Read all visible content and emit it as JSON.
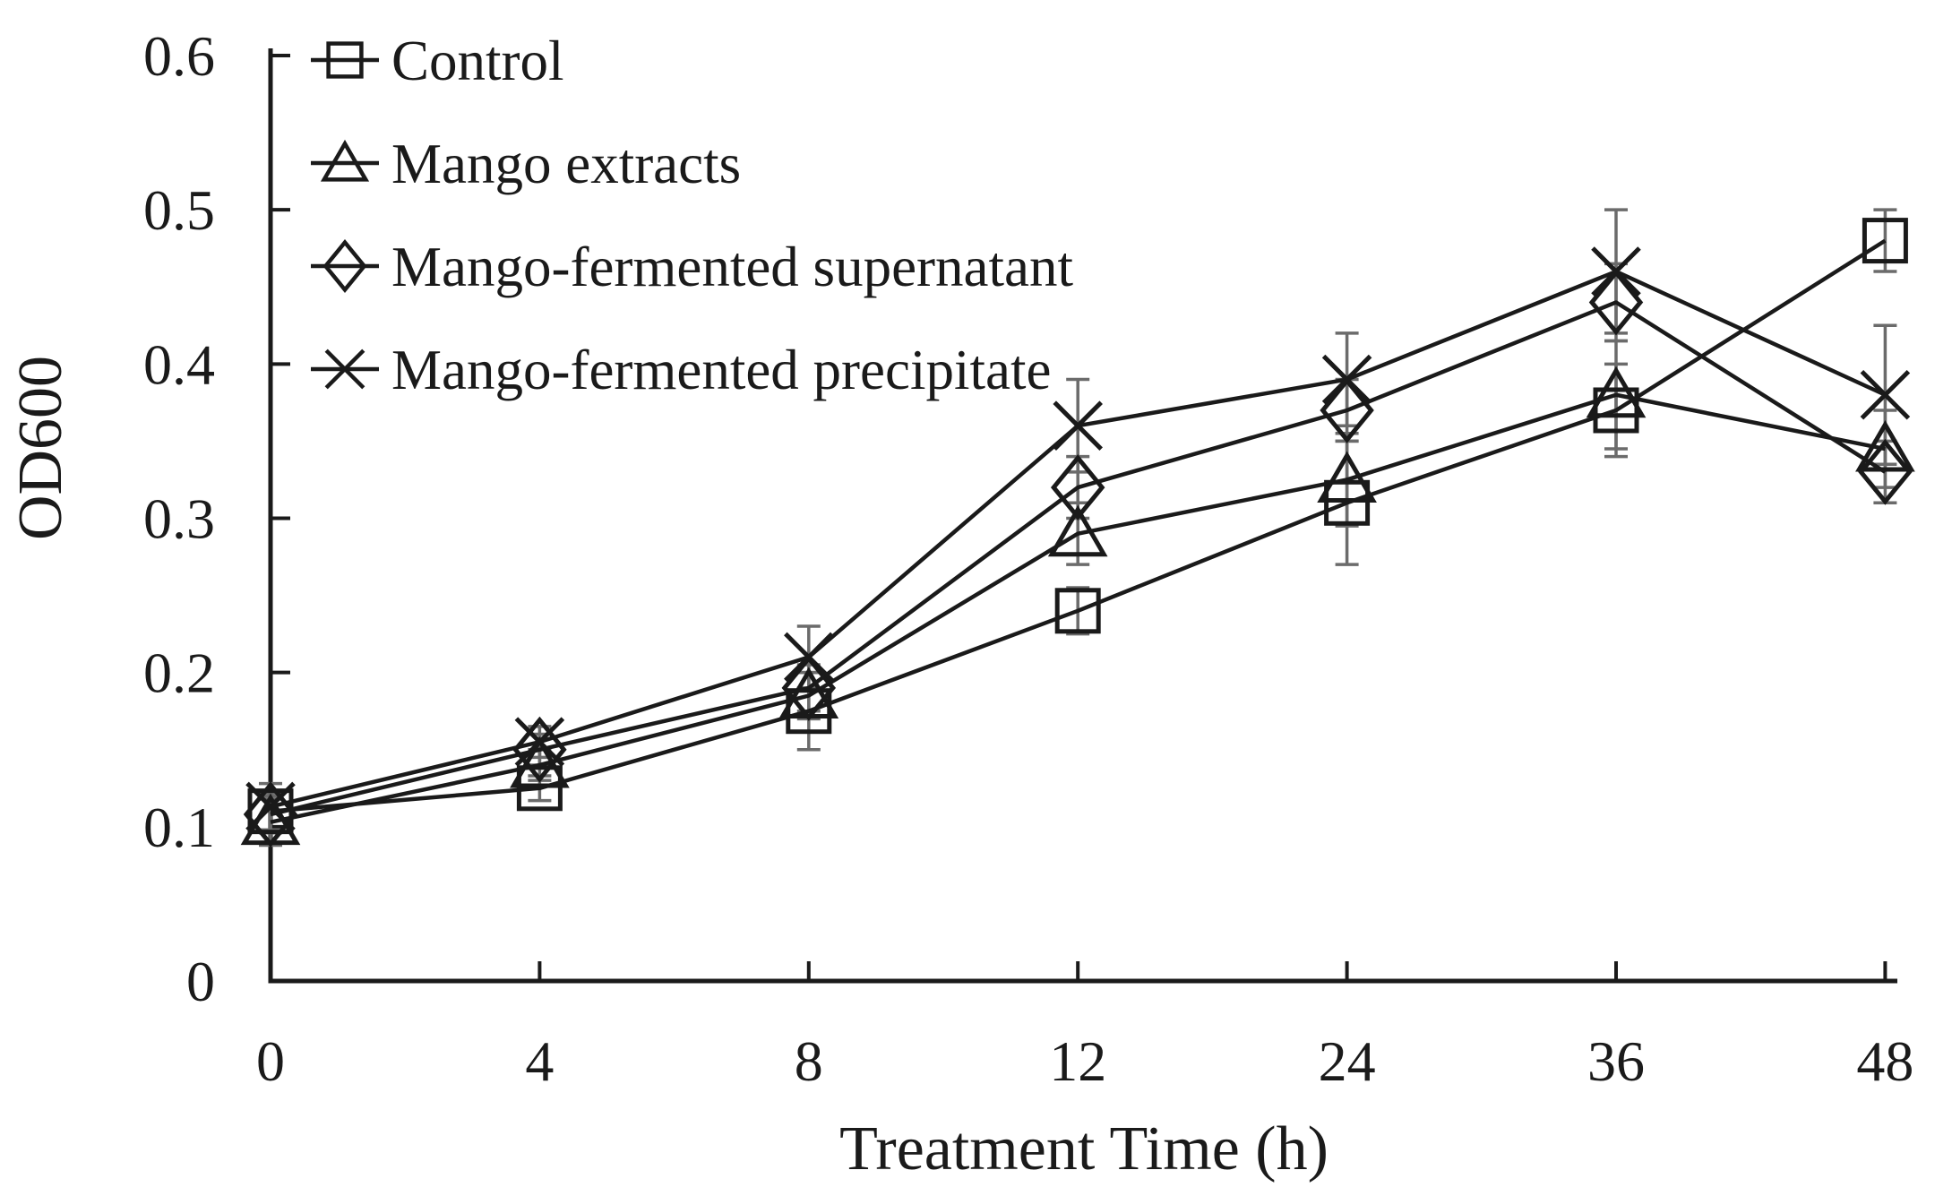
{
  "figure": {
    "background": "#ffffff",
    "ink_color": "#1a1a1a",
    "error_bar_color": "#6b6b6b"
  },
  "chart_data": {
    "type": "line",
    "title": "",
    "xlabel": "Treatment Time (h)",
    "ylabel": "OD600",
    "x_categories": [
      "0",
      "4",
      "8",
      "12",
      "24",
      "36",
      "48"
    ],
    "y_tick_labels": [
      "0",
      "0.1",
      "0.2",
      "0.3",
      "0.4",
      "0.5",
      "0.6"
    ],
    "ylim": [
      0,
      0.6
    ],
    "grid": false,
    "legend_position": "inside-top-left",
    "marker_style": "open-black",
    "series": [
      {
        "name": "Control",
        "marker": "square",
        "values": [
          0.11,
          0.125,
          0.175,
          0.24,
          0.31,
          0.37,
          0.48
        ],
        "errors": [
          0.012,
          0.008,
          0.025,
          0.015,
          0.04,
          0.03,
          0.02
        ]
      },
      {
        "name": "Mango extracts",
        "marker": "triangle",
        "values": [
          0.103,
          0.14,
          0.185,
          0.29,
          0.325,
          0.38,
          0.345
        ],
        "errors": [
          0.015,
          0.01,
          0.015,
          0.02,
          0.03,
          0.035,
          0.025
        ]
      },
      {
        "name": "Mango-fermented supernatant",
        "marker": "diamond",
        "values": [
          0.108,
          0.15,
          0.19,
          0.32,
          0.37,
          0.44,
          0.33
        ],
        "errors": [
          0.012,
          0.01,
          0.015,
          0.02,
          0.02,
          0.025,
          0.02
        ]
      },
      {
        "name": "Mango-fermented precipitate",
        "marker": "x",
        "values": [
          0.113,
          0.155,
          0.21,
          0.36,
          0.39,
          0.46,
          0.38
        ],
        "errors": [
          0.015,
          0.01,
          0.02,
          0.03,
          0.03,
          0.04,
          0.045
        ]
      }
    ]
  }
}
